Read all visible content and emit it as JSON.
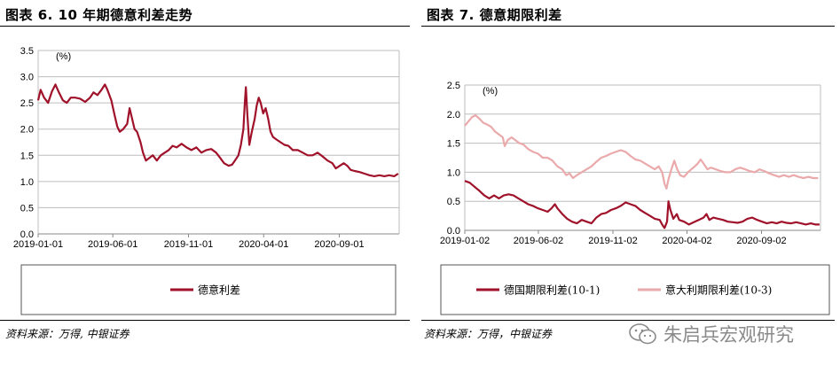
{
  "left_panel": {
    "title": "图表 6. 10 年期德意利差走势",
    "source": "资料来源：万得, 中银证券"
  },
  "right_panel": {
    "title": "图表 7. 德意期限利差",
    "source": "资料来源：万得，中银证券"
  },
  "watermark": {
    "text": "朱启兵宏观研究",
    "icon": "wechat-icon"
  },
  "chart_data": [
    {
      "type": "line",
      "title": "图表 6. 10 年期德意利差走势",
      "unit_label": "(%)",
      "ylim": [
        0,
        3.5
      ],
      "yticks": [
        "0.0",
        "0.5",
        "1.0",
        "1.5",
        "2.0",
        "2.5",
        "3.0",
        "3.5"
      ],
      "xticks": [
        {
          "label": "2019-01-01",
          "t": 0
        },
        {
          "label": "2019-06-01",
          "t": 151
        },
        {
          "label": "2019-11-01",
          "t": 304
        },
        {
          "label": "2020-04-01",
          "t": 456
        },
        {
          "label": "2020-09-01",
          "t": 609
        }
      ],
      "xlim_days": [
        0,
        730
      ],
      "grid": true,
      "legend_position": "bottom",
      "series": [
        {
          "name": "德意利差",
          "color": "#a0112a",
          "points": [
            [
              0,
              2.55
            ],
            [
              5,
              2.75
            ],
            [
              12,
              2.6
            ],
            [
              20,
              2.5
            ],
            [
              28,
              2.72
            ],
            [
              35,
              2.85
            ],
            [
              42,
              2.7
            ],
            [
              50,
              2.55
            ],
            [
              58,
              2.5
            ],
            [
              66,
              2.6
            ],
            [
              75,
              2.6
            ],
            [
              85,
              2.58
            ],
            [
              95,
              2.52
            ],
            [
              105,
              2.6
            ],
            [
              112,
              2.7
            ],
            [
              120,
              2.65
            ],
            [
              128,
              2.75
            ],
            [
              135,
              2.85
            ],
            [
              140,
              2.75
            ],
            [
              148,
              2.55
            ],
            [
              155,
              2.25
            ],
            [
              160,
              2.05
            ],
            [
              165,
              1.95
            ],
            [
              172,
              2.0
            ],
            [
              180,
              2.1
            ],
            [
              185,
              2.4
            ],
            [
              190,
              2.2
            ],
            [
              195,
              2.0
            ],
            [
              200,
              1.95
            ],
            [
              207,
              1.75
            ],
            [
              212,
              1.55
            ],
            [
              218,
              1.4
            ],
            [
              225,
              1.45
            ],
            [
              232,
              1.5
            ],
            [
              240,
              1.4
            ],
            [
              248,
              1.5
            ],
            [
              256,
              1.55
            ],
            [
              264,
              1.6
            ],
            [
              272,
              1.68
            ],
            [
              280,
              1.65
            ],
            [
              290,
              1.72
            ],
            [
              300,
              1.65
            ],
            [
              310,
              1.6
            ],
            [
              320,
              1.65
            ],
            [
              330,
              1.55
            ],
            [
              340,
              1.6
            ],
            [
              350,
              1.62
            ],
            [
              360,
              1.55
            ],
            [
              368,
              1.45
            ],
            [
              376,
              1.35
            ],
            [
              385,
              1.3
            ],
            [
              392,
              1.32
            ],
            [
              398,
              1.4
            ],
            [
              405,
              1.5
            ],
            [
              410,
              1.7
            ],
            [
              415,
              2.0
            ],
            [
              418,
              2.5
            ],
            [
              420,
              2.8
            ],
            [
              423,
              2.3
            ],
            [
              427,
              1.7
            ],
            [
              432,
              1.95
            ],
            [
              438,
              2.2
            ],
            [
              442,
              2.45
            ],
            [
              446,
              2.6
            ],
            [
              450,
              2.5
            ],
            [
              455,
              2.3
            ],
            [
              460,
              2.4
            ],
            [
              465,
              2.2
            ],
            [
              470,
              1.95
            ],
            [
              475,
              1.85
            ],
            [
              482,
              1.8
            ],
            [
              490,
              1.75
            ],
            [
              498,
              1.7
            ],
            [
              506,
              1.68
            ],
            [
              515,
              1.6
            ],
            [
              525,
              1.6
            ],
            [
              535,
              1.55
            ],
            [
              545,
              1.5
            ],
            [
              555,
              1.5
            ],
            [
              565,
              1.55
            ],
            [
              575,
              1.48
            ],
            [
              585,
              1.4
            ],
            [
              595,
              1.35
            ],
            [
              602,
              1.25
            ],
            [
              610,
              1.3
            ],
            [
              618,
              1.35
            ],
            [
              625,
              1.3
            ],
            [
              632,
              1.22
            ],
            [
              640,
              1.2
            ],
            [
              650,
              1.18
            ],
            [
              660,
              1.15
            ],
            [
              670,
              1.12
            ],
            [
              680,
              1.1
            ],
            [
              690,
              1.12
            ],
            [
              700,
              1.1
            ],
            [
              710,
              1.12
            ],
            [
              720,
              1.1
            ],
            [
              728,
              1.15
            ]
          ]
        }
      ]
    },
    {
      "type": "line",
      "title": "图表 7. 德意期限利差",
      "unit_label": "(%)",
      "ylim": [
        0,
        2.5
      ],
      "yticks": [
        "0.0",
        "0.5",
        "1.0",
        "1.5",
        "2.0",
        "2.5"
      ],
      "xticks": [
        {
          "label": "2019-01-02",
          "t": 0
        },
        {
          "label": "2019-06-02",
          "t": 151
        },
        {
          "label": "2019-11-02",
          "t": 304
        },
        {
          "label": "2020-04-02",
          "t": 456
        },
        {
          "label": "2020-09-02",
          "t": 609
        }
      ],
      "xlim_days": [
        0,
        730
      ],
      "grid": true,
      "legend_position": "bottom",
      "series": [
        {
          "name": "德国期限利差(10-1)",
          "color": "#a0112a",
          "points": [
            [
              0,
              0.85
            ],
            [
              10,
              0.82
            ],
            [
              20,
              0.75
            ],
            [
              30,
              0.68
            ],
            [
              40,
              0.6
            ],
            [
              50,
              0.55
            ],
            [
              60,
              0.6
            ],
            [
              70,
              0.55
            ],
            [
              80,
              0.6
            ],
            [
              90,
              0.62
            ],
            [
              100,
              0.6
            ],
            [
              110,
              0.55
            ],
            [
              120,
              0.5
            ],
            [
              130,
              0.45
            ],
            [
              140,
              0.42
            ],
            [
              150,
              0.38
            ],
            [
              160,
              0.35
            ],
            [
              170,
              0.32
            ],
            [
              178,
              0.38
            ],
            [
              185,
              0.45
            ],
            [
              190,
              0.38
            ],
            [
              200,
              0.28
            ],
            [
              210,
              0.2
            ],
            [
              220,
              0.15
            ],
            [
              230,
              0.12
            ],
            [
              240,
              0.18
            ],
            [
              250,
              0.15
            ],
            [
              260,
              0.12
            ],
            [
              270,
              0.22
            ],
            [
              280,
              0.28
            ],
            [
              290,
              0.3
            ],
            [
              300,
              0.35
            ],
            [
              310,
              0.38
            ],
            [
              320,
              0.42
            ],
            [
              330,
              0.48
            ],
            [
              340,
              0.45
            ],
            [
              350,
              0.42
            ],
            [
              360,
              0.35
            ],
            [
              370,
              0.3
            ],
            [
              380,
              0.25
            ],
            [
              390,
              0.2
            ],
            [
              400,
              0.18
            ],
            [
              405,
              0.1
            ],
            [
              410,
              0.04
            ],
            [
              415,
              0.15
            ],
            [
              418,
              0.5
            ],
            [
              422,
              0.35
            ],
            [
              428,
              0.2
            ],
            [
              435,
              0.28
            ],
            [
              440,
              0.18
            ],
            [
              450,
              0.15
            ],
            [
              460,
              0.1
            ],
            [
              470,
              0.14
            ],
            [
              480,
              0.18
            ],
            [
              490,
              0.22
            ],
            [
              496,
              0.28
            ],
            [
              502,
              0.18
            ],
            [
              510,
              0.22
            ],
            [
              520,
              0.2
            ],
            [
              530,
              0.18
            ],
            [
              540,
              0.15
            ],
            [
              550,
              0.14
            ],
            [
              560,
              0.13
            ],
            [
              570,
              0.15
            ],
            [
              580,
              0.2
            ],
            [
              590,
              0.22
            ],
            [
              600,
              0.18
            ],
            [
              610,
              0.15
            ],
            [
              620,
              0.12
            ],
            [
              630,
              0.14
            ],
            [
              640,
              0.12
            ],
            [
              650,
              0.15
            ],
            [
              660,
              0.13
            ],
            [
              670,
              0.12
            ],
            [
              680,
              0.14
            ],
            [
              690,
              0.12
            ],
            [
              700,
              0.1
            ],
            [
              710,
              0.12
            ],
            [
              720,
              0.1
            ],
            [
              728,
              0.1
            ]
          ]
        },
        {
          "name": "意大利期限利差(10-3)",
          "color": "#eaa9ab",
          "points": [
            [
              0,
              1.8
            ],
            [
              8,
              1.88
            ],
            [
              15,
              1.95
            ],
            [
              22,
              1.98
            ],
            [
              30,
              1.92
            ],
            [
              38,
              1.85
            ],
            [
              46,
              1.82
            ],
            [
              54,
              1.78
            ],
            [
              62,
              1.7
            ],
            [
              70,
              1.65
            ],
            [
              78,
              1.6
            ],
            [
              82,
              1.45
            ],
            [
              88,
              1.55
            ],
            [
              96,
              1.6
            ],
            [
              104,
              1.55
            ],
            [
              112,
              1.5
            ],
            [
              120,
              1.48
            ],
            [
              130,
              1.4
            ],
            [
              140,
              1.35
            ],
            [
              150,
              1.32
            ],
            [
              160,
              1.25
            ],
            [
              170,
              1.25
            ],
            [
              180,
              1.2
            ],
            [
              190,
              1.1
            ],
            [
              200,
              1.05
            ],
            [
              208,
              0.95
            ],
            [
              215,
              0.98
            ],
            [
              222,
              0.9
            ],
            [
              230,
              0.95
            ],
            [
              240,
              1.0
            ],
            [
              250,
              1.05
            ],
            [
              260,
              1.1
            ],
            [
              270,
              1.18
            ],
            [
              280,
              1.25
            ],
            [
              290,
              1.28
            ],
            [
              300,
              1.32
            ],
            [
              310,
              1.35
            ],
            [
              320,
              1.38
            ],
            [
              330,
              1.35
            ],
            [
              340,
              1.28
            ],
            [
              350,
              1.22
            ],
            [
              360,
              1.2
            ],
            [
              370,
              1.15
            ],
            [
              380,
              1.1
            ],
            [
              390,
              1.05
            ],
            [
              398,
              1.1
            ],
            [
              405,
              1.0
            ],
            [
              410,
              0.8
            ],
            [
              414,
              0.72
            ],
            [
              418,
              0.88
            ],
            [
              424,
              1.05
            ],
            [
              430,
              1.2
            ],
            [
              436,
              1.05
            ],
            [
              442,
              0.95
            ],
            [
              450,
              0.92
            ],
            [
              458,
              1.0
            ],
            [
              465,
              1.05
            ],
            [
              472,
              1.1
            ],
            [
              478,
              1.15
            ],
            [
              484,
              1.22
            ],
            [
              490,
              1.15
            ],
            [
              498,
              1.05
            ],
            [
              505,
              1.08
            ],
            [
              515,
              1.05
            ],
            [
              525,
              1.02
            ],
            [
              535,
              1.0
            ],
            [
              545,
              1.0
            ],
            [
              555,
              1.05
            ],
            [
              565,
              1.08
            ],
            [
              575,
              1.05
            ],
            [
              585,
              1.02
            ],
            [
              595,
              1.0
            ],
            [
              605,
              1.05
            ],
            [
              615,
              1.02
            ],
            [
              625,
              0.98
            ],
            [
              635,
              0.95
            ],
            [
              645,
              0.92
            ],
            [
              655,
              0.95
            ],
            [
              665,
              0.92
            ],
            [
              675,
              0.95
            ],
            [
              685,
              0.92
            ],
            [
              695,
              0.9
            ],
            [
              705,
              0.92
            ],
            [
              715,
              0.9
            ],
            [
              725,
              0.9
            ]
          ]
        }
      ]
    }
  ]
}
